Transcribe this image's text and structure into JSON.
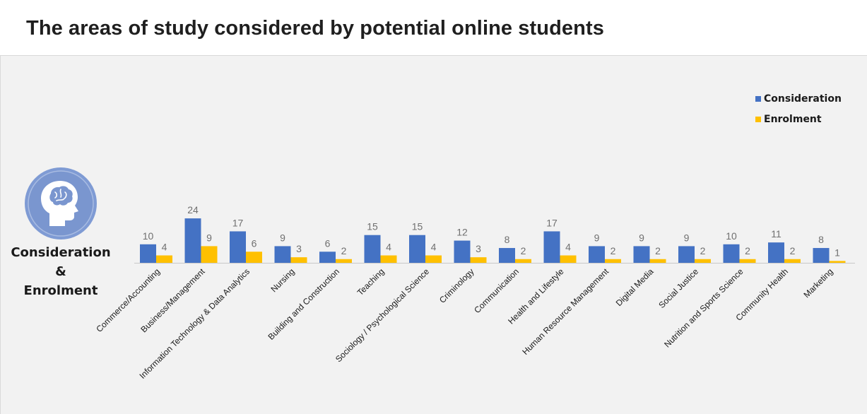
{
  "title": "The areas of study considered by potential online students",
  "side_label": {
    "line1": "Consideration",
    "line2": "&",
    "line3": "Enrolment"
  },
  "icon": "head-brain-icon",
  "colors": {
    "consideration": "#4472c4",
    "enrolment": "#ffc000",
    "panel": "#f2f2f2",
    "badge": "#7f9bd4"
  },
  "chart_data": {
    "type": "bar",
    "categories": [
      "Commerce/Accounting",
      "Business/Management",
      "Information Technology & Data Analytics",
      "Nursing",
      "Building and Construction",
      "Teaching",
      "Sociology / Psychological Science",
      "Criminology",
      "Communication",
      "Health and Lifestyle",
      "Human Resource Management",
      "Digital Media",
      "Social Justice",
      "Nutrition and Sports Science",
      "Community Health",
      "Marketing"
    ],
    "series": [
      {
        "name": "Consideration",
        "values": [
          10,
          24,
          17,
          9,
          6,
          15,
          15,
          12,
          8,
          17,
          9,
          9,
          9,
          10,
          11,
          8
        ]
      },
      {
        "name": "Enrolment",
        "values": [
          4,
          9,
          6,
          3,
          2,
          4,
          4,
          3,
          2,
          4,
          2,
          2,
          2,
          2,
          2,
          1
        ]
      }
    ],
    "data_labels": true,
    "legend_position": "top-right",
    "grid": false,
    "y_axis_visible": false,
    "ylim": [
      0,
      24
    ]
  }
}
